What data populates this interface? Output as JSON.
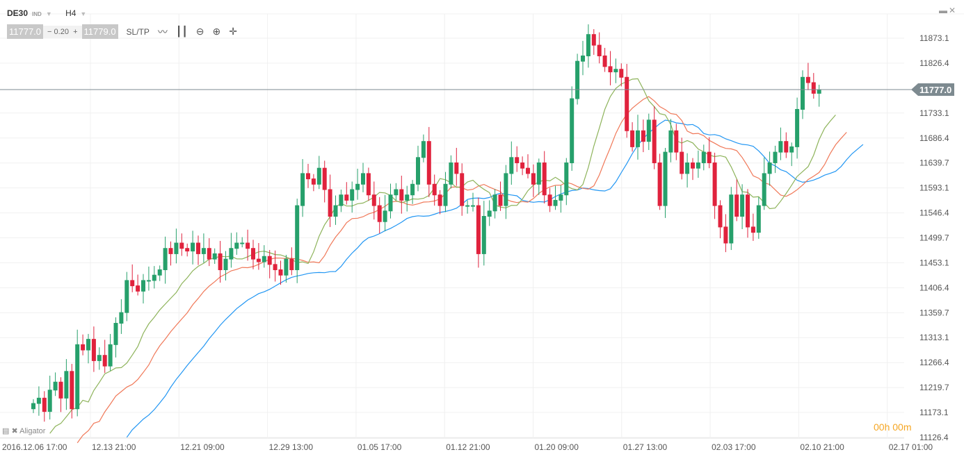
{
  "symbol": "DE30",
  "symbol_type": "IND",
  "timeframe": "H4",
  "quote": {
    "bid": "11777.0",
    "spread": "0.20",
    "ask": "11779.0",
    "minus": "−",
    "plus": "+"
  },
  "tools": {
    "sltp": "SL/TP",
    "line_icon": "line-chart-icon",
    "candle_icon": "candlestick-icon",
    "zoom_out": "zoom-out-icon",
    "zoom_in": "zoom-in-icon",
    "move": "crosshair-move-icon"
  },
  "window": {
    "minimize": "▬",
    "close": "✕"
  },
  "indicator_label": "Aligator",
  "timer": "00h 00m",
  "current_price": "11777.0",
  "colors": {
    "up": "#26a06b",
    "down": "#e0223d",
    "jaw": "#2196f3",
    "teeth": "#f07858",
    "lips": "#8db35a",
    "price_line": "#7d8a90",
    "timer": "#f5a623"
  },
  "chart_data": {
    "type": "candlestick",
    "y_ticks": [
      "11873.1",
      "11826.4",
      "11733.1",
      "11686.4",
      "11639.7",
      "11593.1",
      "11546.4",
      "11499.7",
      "11453.1",
      "11406.4",
      "11359.7",
      "11313.1",
      "11266.4",
      "11219.7",
      "11173.1",
      "11126.4"
    ],
    "x_ticks": [
      "2016.12.06 17:00",
      "12.13 21:00",
      "12.21 09:00",
      "12.29 13:00",
      "01.05 17:00",
      "01.12 21:00",
      "01.20 09:00",
      "01.27 13:00",
      "02.03 17:00",
      "02.10 21:00",
      "02.17 01:00"
    ],
    "ylim": [
      11126.4,
      11873.1
    ],
    "grid": true,
    "closes": [
      11190,
      11200,
      11175,
      11215,
      11230,
      11200,
      11250,
      11180,
      11300,
      11290,
      11310,
      11270,
      11280,
      11260,
      11300,
      11340,
      11360,
      11420,
      11410,
      11400,
      11420,
      11420,
      11430,
      11440,
      11480,
      11470,
      11490,
      11480,
      11475,
      11490,
      11470,
      11480,
      11460,
      11470,
      11440,
      11460,
      11480,
      11490,
      11490,
      11480,
      11460,
      11455,
      11465,
      11450,
      11440,
      11430,
      11460,
      11440,
      11560,
      11620,
      11610,
      11600,
      11630,
      11590,
      11540,
      11560,
      11580,
      11570,
      11590,
      11600,
      11620,
      11580,
      11560,
      11530,
      11550,
      11580,
      11590,
      11570,
      11580,
      11600,
      11650,
      11680,
      11600,
      11580,
      11560,
      11600,
      11640,
      11620,
      11560,
      11560,
      11560,
      11470,
      11540,
      11550,
      11580,
      11560,
      11620,
      11650,
      11640,
      11630,
      11620,
      11600,
      11640,
      11580,
      11560,
      11570,
      11580,
      11640,
      11760,
      11830,
      11840,
      11880,
      11860,
      11840,
      11820,
      11810,
      11815,
      11800,
      11700,
      11670,
      11700,
      11680,
      11720,
      11640,
      11560,
      11660,
      11700,
      11660,
      11620,
      11640,
      11630,
      11640,
      11660,
      11640,
      11560,
      11520,
      11490,
      11580,
      11540,
      11580,
      11520,
      11510,
      11560,
      11620,
      11640,
      11660,
      11680,
      11660,
      11670,
      11740,
      11800,
      11790,
      11770,
      11777
    ],
    "indicator": "Alligator"
  }
}
